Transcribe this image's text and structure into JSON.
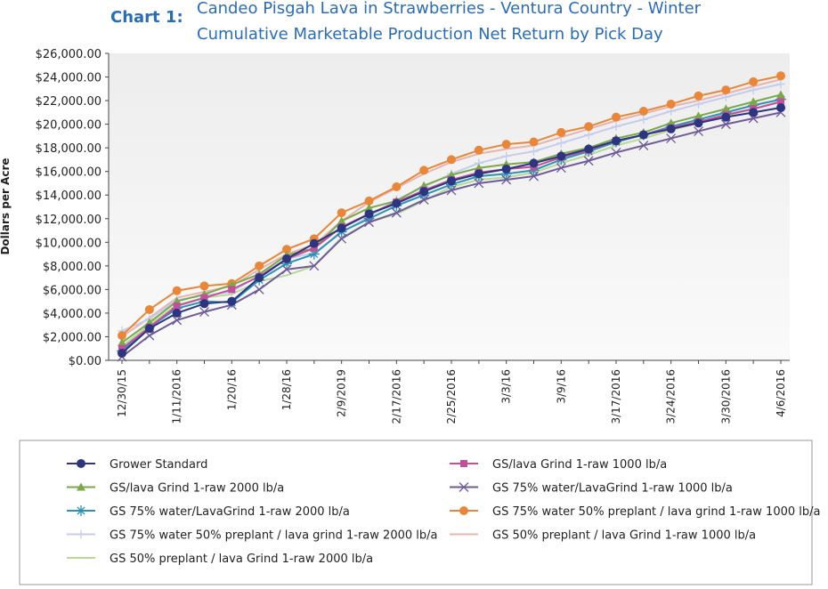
{
  "chart_data": {
    "type": "line",
    "title_label": "Chart 1:",
    "title": [
      "Candeo Pisgah Lava in Strawberries - Ventura Country - Winter",
      "Cumulative Marketable Production Net Return by Pick Day"
    ],
    "y_label": "Dollars per Acre",
    "categories": [
      "12/30/15",
      null,
      "1/11/2016",
      null,
      "1/20/16",
      null,
      "1/28/16",
      null,
      "2/9/2019",
      null,
      "2/17/2016",
      null,
      "2/25/2016",
      null,
      "3/3/16",
      null,
      "3/9/16",
      null,
      "3/17/2016",
      null,
      "3/24/2016",
      null,
      "3/30/2016",
      null,
      "4/6/2016"
    ],
    "ylim": [
      0,
      26000
    ],
    "yticks": [
      {
        "value": 0,
        "label": "$0.00"
      },
      {
        "value": 2000,
        "label": "$2,000.00"
      },
      {
        "value": 4000,
        "label": "$4,000.00"
      },
      {
        "value": 6000,
        "label": "$6,000.00"
      },
      {
        "value": 8000,
        "label": "$8,000.00"
      },
      {
        "value": 10000,
        "label": "$10,000.00"
      },
      {
        "value": 12000,
        "label": "$12,000.00"
      },
      {
        "value": 14000,
        "label": "$14,000.00"
      },
      {
        "value": 16000,
        "label": "$16,000.00"
      },
      {
        "value": 18000,
        "label": "$18,000.00"
      },
      {
        "value": 20000,
        "label": "$20,000.00"
      },
      {
        "value": 22000,
        "label": "$22,000.00"
      },
      {
        "value": 24000,
        "label": "$24,000.00"
      },
      {
        "value": 26000,
        "label": "$26,000.00"
      }
    ],
    "grid": false,
    "series": [
      {
        "name": "Grower Standard",
        "color": "#2e3580",
        "marker": "circle",
        "values": [
          600,
          2700,
          4000,
          4800,
          5000,
          7000,
          8600,
          9900,
          11200,
          12400,
          13300,
          14300,
          15200,
          15800,
          16200,
          16700,
          17300,
          17900,
          18600,
          19100,
          19600,
          20100,
          20600,
          21000,
          21400
        ]
      },
      {
        "name": "GS/lava Grind 1-raw 1000 lb/a",
        "color": "#c0509a",
        "marker": "square",
        "values": [
          1000,
          2800,
          4600,
          5300,
          6000,
          7100,
          8600,
          9500,
          11300,
          12400,
          13400,
          14400,
          15300,
          15900,
          16200,
          16400,
          17200,
          17800,
          18600,
          19100,
          19700,
          20200,
          20800,
          21300,
          21900
        ]
      },
      {
        "name": "GS/lava Grind 1-raw 2000 lb/a",
        "color": "#7aa84a",
        "marker": "triangle",
        "values": [
          1500,
          3200,
          5000,
          5600,
          6400,
          7300,
          8900,
          9500,
          11800,
          12900,
          13500,
          14800,
          15700,
          16300,
          16600,
          16800,
          17500,
          18000,
          18800,
          19300,
          20100,
          20700,
          21300,
          21900,
          22500
        ]
      },
      {
        "name": "GS 75% water/LavaGrind 1-raw 1000 lb/a",
        "color": "#6f5a9a",
        "marker": "x",
        "values": [
          300,
          2100,
          3400,
          4100,
          4700,
          6000,
          7700,
          8000,
          10300,
          11700,
          12500,
          13600,
          14400,
          15000,
          15300,
          15600,
          16300,
          16900,
          17600,
          18200,
          18800,
          19400,
          20000,
          20500,
          21000
        ]
      },
      {
        "name": "GS 75% water/LavaGrind 1-raw 2000 lb/a",
        "color": "#2d93b5",
        "marker": "asterisk",
        "values": [
          800,
          2800,
          4400,
          5000,
          4900,
          6800,
          8200,
          9000,
          10900,
          12000,
          13100,
          14000,
          14900,
          15600,
          15800,
          16100,
          17000,
          17700,
          18500,
          19100,
          19800,
          20400,
          21000,
          21600,
          22100
        ]
      },
      {
        "name": "GS 75% water 50% preplant / lava grind 1-raw 1000 lb/a",
        "color": "#e8873a",
        "marker": "circle",
        "values": [
          2100,
          4300,
          5900,
          6300,
          6500,
          8000,
          9400,
          10300,
          12500,
          13500,
          14700,
          16100,
          17000,
          17800,
          18300,
          18500,
          19300,
          19800,
          20600,
          21100,
          21700,
          22400,
          22900,
          23600,
          24100
        ]
      },
      {
        "name": "GS 75% water 50% preplant / lava grind 1-raw 2000 lb/a",
        "color": "#c5ccee",
        "marker": "plus",
        "values": [
          2500,
          3500,
          5100,
          5500,
          5800,
          7200,
          8600,
          9100,
          10800,
          12200,
          13600,
          14700,
          15800,
          16700,
          17300,
          17700,
          18400,
          19100,
          19800,
          20400,
          21100,
          21700,
          22300,
          22900,
          23400
        ]
      },
      {
        "name": "GS 50% preplant / lava Grind 1-raw 1000 lb/a",
        "color": "#e8b4b0",
        "marker": "none",
        "values": [
          2000,
          3600,
          5300,
          5800,
          6300,
          7700,
          9000,
          9800,
          11800,
          13400,
          14600,
          15800,
          16800,
          17500,
          17900,
          18200,
          18900,
          19600,
          20300,
          20900,
          21500,
          22000,
          22600,
          23200,
          23800
        ]
      },
      {
        "name": "GS 50% preplant / lava Grind 1-raw 2000 lb/a",
        "color": "#b9d89a",
        "marker": "none",
        "values": [
          1200,
          3000,
          4700,
          5300,
          5600,
          6700,
          7200,
          8000,
          10400,
          11700,
          12400,
          13500,
          14700,
          15300,
          15500,
          15900,
          16700,
          17400,
          18200,
          18800,
          19500,
          20100,
          20700,
          21300,
          21900
        ]
      }
    ]
  }
}
